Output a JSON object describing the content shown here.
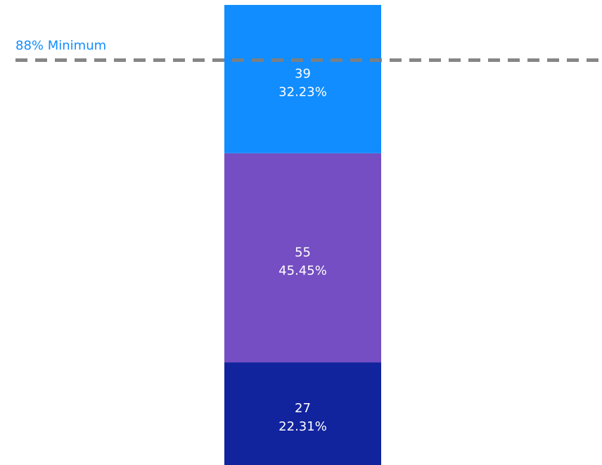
{
  "chart_data": {
    "type": "bar",
    "stacked": true,
    "orientation": "vertical",
    "categories": [
      ""
    ],
    "series": [
      {
        "values": [
          27
        ],
        "percent": "22.31%",
        "color": "#12239E"
      },
      {
        "values": [
          55
        ],
        "percent": "45.45%",
        "color": "#744EC2"
      },
      {
        "values": [
          39
        ],
        "percent": "32.23%",
        "color": "#118DFF"
      }
    ],
    "total": 121,
    "title": "",
    "xlabel": "",
    "ylabel": "",
    "ylim": [
      0,
      121
    ],
    "grid": false,
    "axes_visible": false,
    "reference_line": {
      "label": "88% Minimum",
      "value": 0.88,
      "style": "dashed",
      "color": "#7F7F7F",
      "label_color": "#118DFF"
    }
  }
}
